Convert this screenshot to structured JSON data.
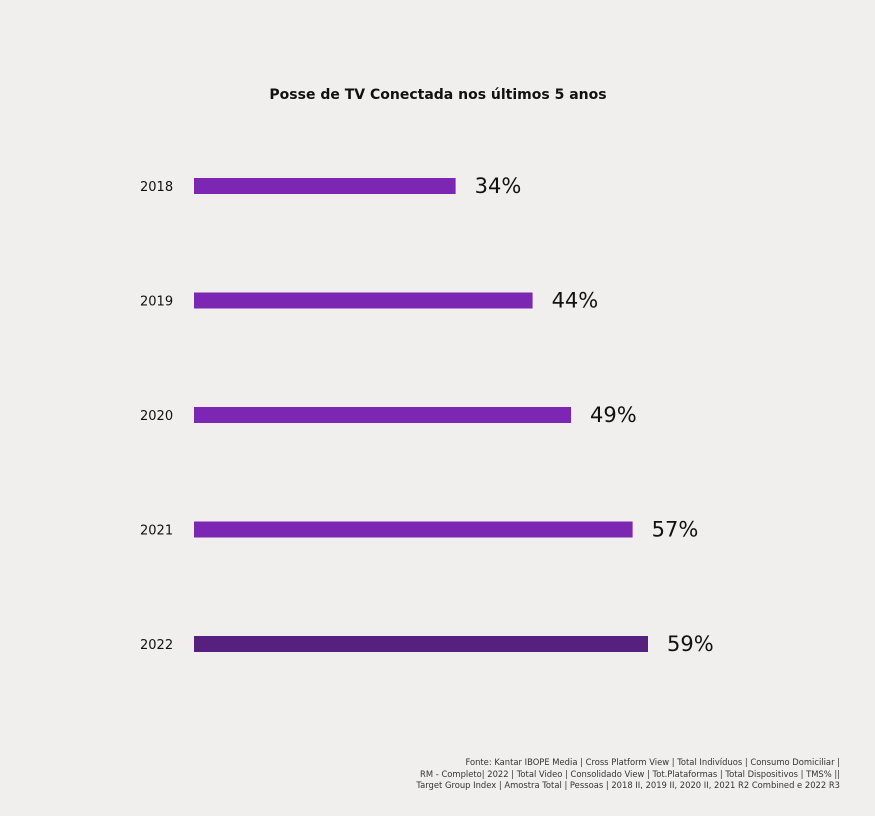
{
  "chart_data": {
    "type": "bar",
    "orientation": "horizontal",
    "title": "Posse de TV Conectada nos últimos 5 anos",
    "categories": [
      "2018",
      "2019",
      "2020",
      "2021",
      "2022"
    ],
    "values": [
      34,
      44,
      49,
      57,
      59
    ],
    "value_labels": [
      "34%",
      "44%",
      "49%",
      "57%",
      "59%"
    ],
    "unit": "%",
    "xlim": [
      0,
      59
    ],
    "grid": false,
    "legend": "none",
    "colors": {
      "bar": "#7b27b4",
      "highlight_bar": "#56207e",
      "highlight_label": "#5a2a8a",
      "text": "#111111"
    },
    "highlight_index": 4
  },
  "source": {
    "lines": [
      "Fonte: Kantar IBOPE Media | Cross Platform View | Total Indivíduos | Consumo Domiciliar |",
      "RM - Completo| 2022 | Total Video | Consolidado View | Tot.Plataformas | Total Dispositivos | TMS% ||",
      "Target Group Index | Amostra Total | Pessoas | 2018 II, 2019 II, 2020 II, 2021 R2 Combined e 2022 R3"
    ]
  }
}
